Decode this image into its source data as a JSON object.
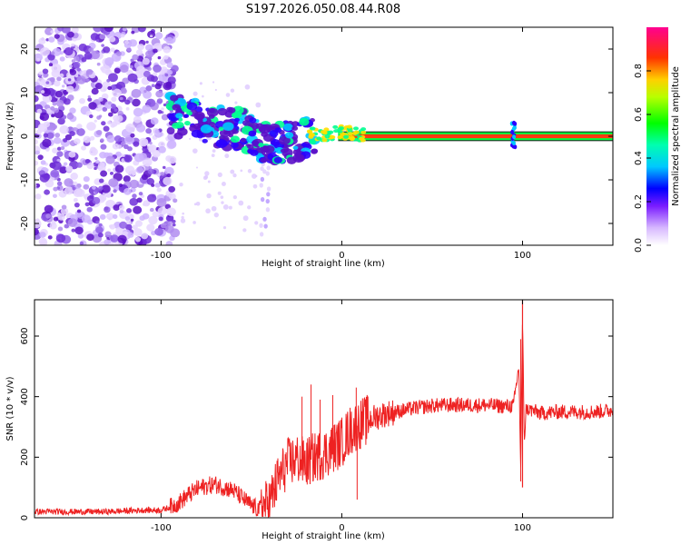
{
  "title": "S197.2026.050.08.44.R08",
  "chart_data": [
    {
      "type": "heatmap",
      "xlabel": "Height of straight line (km)",
      "ylabel": "Frequency (Hz)",
      "xlim": [
        -170,
        150
      ],
      "ylim": [
        -25,
        25
      ],
      "xticks": [
        -100,
        0,
        100
      ],
      "yticks": [
        -20,
        -10,
        0,
        10,
        20
      ],
      "colorbar": {
        "label": "Normalized spectral amplitude",
        "range": [
          0,
          1
        ],
        "ticks": [
          "0.0",
          "0.2",
          "0.4",
          "0.6",
          "0.8"
        ]
      },
      "ridge": {
        "description_points_x": [
          -95,
          -85,
          -75,
          -65,
          -55,
          -45,
          -35,
          -25,
          -15,
          -5,
          0,
          10,
          25,
          50,
          75,
          95,
          100,
          150
        ],
        "frequency_hz": [
          5,
          4,
          3,
          2,
          1.5,
          -1,
          -1.5,
          -1,
          0.5,
          0.5,
          1,
          0.5,
          0.5,
          0.5,
          0,
          0.5,
          0,
          0
        ]
      }
    },
    {
      "type": "line",
      "xlabel": "Height of straight line (km)",
      "ylabel": "SNR (10 * v/v)",
      "xlim": [
        -170,
        150
      ],
      "ylim": [
        0,
        720
      ],
      "xticks": [
        -100,
        0,
        100
      ],
      "yticks": [
        0,
        200,
        400,
        600
      ],
      "series": [
        {
          "name": "SNR",
          "color": "#ee2222",
          "x": [
            -170,
            -150,
            -130,
            -110,
            -100,
            -95,
            -90,
            -85,
            -80,
            -75,
            -70,
            -65,
            -60,
            -55,
            -50,
            -45,
            -40,
            -35,
            -30,
            -25,
            -20,
            -15,
            -10,
            -5,
            0,
            5,
            10,
            15,
            20,
            25,
            30,
            40,
            50,
            60,
            70,
            80,
            90,
            95,
            98,
            99,
            100,
            101,
            102,
            105,
            110,
            120,
            130,
            140,
            150
          ],
          "y": [
            20,
            20,
            20,
            25,
            25,
            35,
            50,
            75,
            95,
            105,
            110,
            100,
            90,
            65,
            40,
            25,
            50,
            130,
            180,
            195,
            180,
            200,
            210,
            230,
            250,
            290,
            310,
            325,
            335,
            345,
            350,
            362,
            370,
            372,
            372,
            372,
            368,
            370,
            500,
            150,
            650,
            250,
            360,
            355,
            345,
            350,
            350,
            350,
            355
          ]
        }
      ],
      "spikes": [
        {
          "x": -22,
          "y": 400
        },
        {
          "x": -17,
          "y": 440
        },
        {
          "x": -12,
          "y": 390
        },
        {
          "x": -5,
          "y": 405
        },
        {
          "x": 8,
          "y": 430
        },
        {
          "x": 8.5,
          "y": 60
        }
      ]
    }
  ],
  "colors": {
    "spectrum_low": "#a98bd8",
    "spectrum_mid": "#6a2bd0",
    "snr_line": "#ee2222"
  }
}
